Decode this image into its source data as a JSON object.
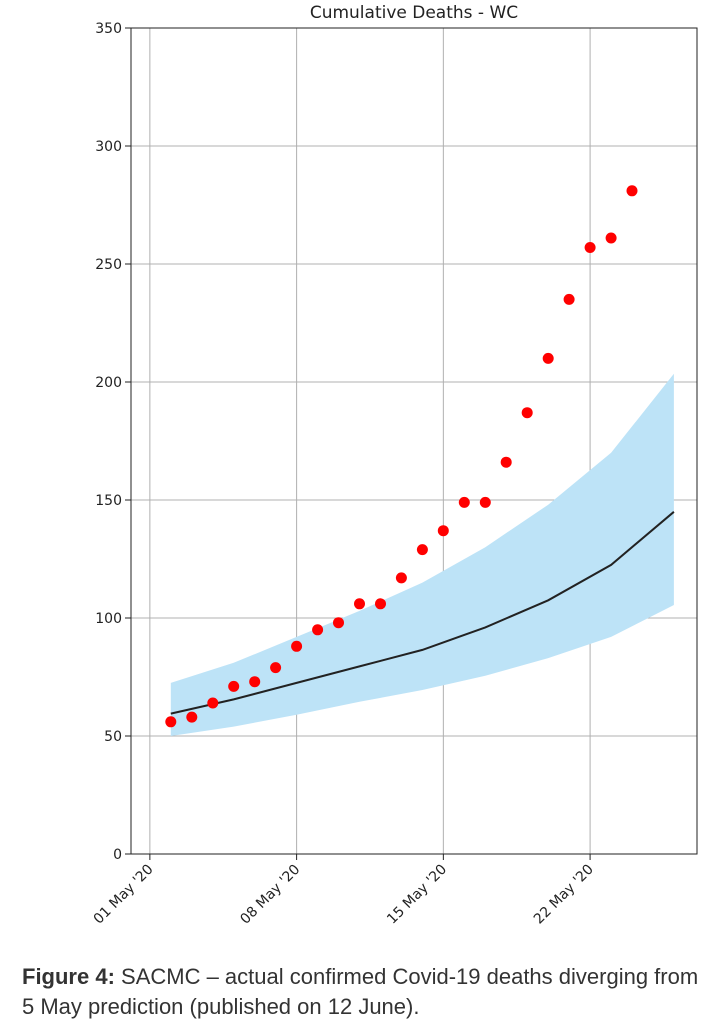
{
  "chart_data": {
    "type": "scatter",
    "title": "Cumulative Deaths - WC",
    "xlabel": "",
    "ylabel": "",
    "ylim": [
      0,
      350
    ],
    "yticks": [
      0,
      50,
      100,
      150,
      200,
      250,
      300,
      350
    ],
    "xlim_days": [
      -0.9,
      26.1
    ],
    "xticks": [
      {
        "day": 0,
        "label": "01 May '20"
      },
      {
        "day": 7,
        "label": "08 May '20"
      },
      {
        "day": 14,
        "label": "15 May '20"
      },
      {
        "day": 21,
        "label": "22 May '20"
      }
    ],
    "grid": true,
    "series": [
      {
        "kind": "scatter",
        "color": "#ff0000",
        "x": [
          "2020-05-02",
          "2020-05-03",
          "2020-05-04",
          "2020-05-05",
          "2020-05-06",
          "2020-05-07",
          "2020-05-08",
          "2020-05-09",
          "2020-05-10",
          "2020-05-11",
          "2020-05-12",
          "2020-05-13",
          "2020-05-14",
          "2020-05-15",
          "2020-05-16",
          "2020-05-17",
          "2020-05-18",
          "2020-05-19",
          "2020-05-20",
          "2020-05-21",
          "2020-05-22",
          "2020-05-23",
          "2020-05-24"
        ],
        "y": [
          56,
          58,
          64,
          71,
          73,
          79,
          88,
          95,
          98,
          106,
          106,
          117,
          129,
          137,
          149,
          149,
          166,
          187,
          210,
          235,
          257,
          261,
          281
        ]
      },
      {
        "kind": "line",
        "color": "#222222",
        "x": [
          "2020-05-02",
          "2020-05-05",
          "2020-05-08",
          "2020-05-11",
          "2020-05-14",
          "2020-05-17",
          "2020-05-20",
          "2020-05-23",
          "2020-05-26"
        ],
        "y": [
          59.5,
          65.5,
          72.5,
          79.5,
          86.5,
          96,
          107.5,
          122.5,
          145
        ]
      },
      {
        "kind": "band",
        "color": "#bde3f7",
        "x": [
          "2020-05-02",
          "2020-05-05",
          "2020-05-08",
          "2020-05-11",
          "2020-05-14",
          "2020-05-17",
          "2020-05-20",
          "2020-05-23",
          "2020-05-26"
        ],
        "upper": [
          72.5,
          81,
          92,
          103,
          115,
          130,
          148,
          170,
          203.5
        ],
        "lower": [
          50,
          54,
          59,
          64.5,
          69.5,
          75.5,
          83,
          92,
          105.5
        ]
      }
    ]
  },
  "caption": {
    "label": "Figure 4:",
    "text": " SACMC – actual confirmed Covid-19 deaths diverging from 5 May prediction (published on 12 June)."
  }
}
